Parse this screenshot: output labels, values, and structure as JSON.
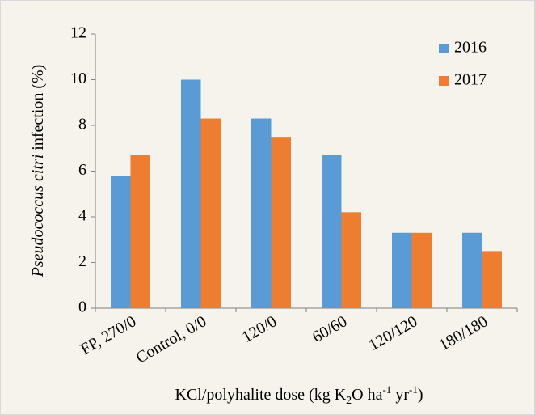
{
  "chart_data": {
    "type": "bar",
    "categories": [
      "FP, 270/0",
      "Control, 0/0",
      "120/0",
      "60/60",
      "120/120",
      "180/180"
    ],
    "series": [
      {
        "name": "2016",
        "color": "#5b9bd5",
        "values": [
          5.8,
          10.0,
          8.3,
          6.7,
          3.3,
          3.3
        ]
      },
      {
        "name": "2017",
        "color": "#ed7d31",
        "values": [
          6.7,
          8.3,
          7.5,
          4.2,
          3.3,
          2.5
        ]
      }
    ],
    "ylim": [
      0,
      12
    ],
    "yticks": [
      0,
      2,
      4,
      6,
      8,
      10,
      12
    ],
    "ylabel": [
      "Pseudococcus citri",
      " infection (%)"
    ],
    "xlabel": [
      "KCl/polyhalite dose (kg K",
      "2",
      "O ha",
      "-1",
      " yr",
      "-1",
      ")"
    ],
    "legend": "top-right",
    "grid": false
  }
}
